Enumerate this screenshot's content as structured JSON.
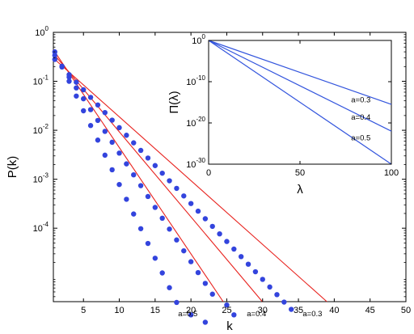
{
  "chart_data": [
    {
      "id": "main",
      "type": "scatter",
      "xlabel": "k",
      "ylabel": "P(k)",
      "xlim": [
        0.8,
        50
      ],
      "ylim_log10": [
        -5.5,
        0
      ],
      "y_scale": "log",
      "x_ticks": [
        5,
        10,
        15,
        20,
        25,
        30,
        35,
        40,
        45,
        50
      ],
      "y_ticks": [
        {
          "exp": 0,
          "label": "10",
          "sup": "0"
        },
        {
          "exp": -1,
          "label": "10",
          "sup": "-1"
        },
        {
          "exp": -2,
          "label": "10",
          "sup": "-2"
        },
        {
          "exp": -3,
          "label": "10",
          "sup": "-3"
        },
        {
          "exp": -4,
          "label": "10",
          "sup": "-4"
        }
      ],
      "grid": false,
      "marker_color": "#3344dd",
      "fit_color": "#e8221e",
      "series": [
        {
          "name": "a=0.5",
          "fit": [
            0.4,
            0.5
          ],
          "points": [
            [
              1,
              0.4
            ],
            [
              2,
              0.2
            ],
            [
              3,
              0.1
            ],
            [
              4,
              0.05
            ],
            [
              5,
              0.025
            ],
            [
              6,
              0.0125
            ],
            [
              7,
              0.0063
            ],
            [
              8,
              0.0031
            ],
            [
              9,
              0.00156
            ],
            [
              10,
              0.00078
            ],
            [
              11,
              0.00039
            ],
            [
              12,
              0.000195
            ],
            [
              13,
              9.77e-05
            ],
            [
              14,
              4.88e-05
            ],
            [
              15,
              2.44e-05
            ],
            [
              16,
              1.22e-05
            ],
            [
              17,
              6.1e-06
            ],
            [
              18,
              3.05e-06
            ],
            [
              20,
              1.7e-06
            ],
            [
              22,
              1.2e-06
            ]
          ]
        },
        {
          "name": "a=0.4",
          "fit": [
            0.34,
            0.4
          ],
          "points": [
            [
              1,
              0.34
            ],
            [
              2,
              0.204
            ],
            [
              3,
              0.122
            ],
            [
              4,
              0.0734
            ],
            [
              5,
              0.044
            ],
            [
              6,
              0.0264
            ],
            [
              7,
              0.0159
            ],
            [
              8,
              0.0095
            ],
            [
              9,
              0.0057
            ],
            [
              10,
              0.00342
            ],
            [
              11,
              0.00206
            ],
            [
              12,
              0.00123
            ],
            [
              13,
              0.00074
            ],
            [
              14,
              0.000444
            ],
            [
              15,
              0.000266
            ],
            [
              16,
              0.00016
            ],
            [
              17,
              9.59e-05
            ],
            [
              18,
              5.75e-05
            ],
            [
              19,
              3.45e-05
            ],
            [
              20,
              2.07e-05
            ],
            [
              21,
              1.24e-05
            ],
            [
              22,
              7.46e-06
            ],
            [
              23,
              4.5e-06
            ],
            [
              25,
              2.7e-06
            ],
            [
              26,
              1.7e-06
            ]
          ]
        },
        {
          "name": "a=0.3",
          "fit": [
            0.28,
            0.3
          ],
          "points": [
            [
              1,
              0.28
            ],
            [
              2,
              0.196
            ],
            [
              3,
              0.137
            ],
            [
              4,
              0.096
            ],
            [
              5,
              0.0672
            ],
            [
              6,
              0.047
            ],
            [
              7,
              0.0329
            ],
            [
              8,
              0.023
            ],
            [
              9,
              0.0161
            ],
            [
              10,
              0.0113
            ],
            [
              11,
              0.00791
            ],
            [
              12,
              0.00554
            ],
            [
              13,
              0.00388
            ],
            [
              14,
              0.00271
            ],
            [
              15,
              0.0019
            ],
            [
              16,
              0.00133
            ],
            [
              17,
              0.00093
            ],
            [
              18,
              0.000651
            ],
            [
              19,
              0.000456
            ],
            [
              20,
              0.000319
            ],
            [
              21,
              0.000223
            ],
            [
              22,
              0.000156
            ],
            [
              23,
              0.000109
            ],
            [
              24,
              7.66e-05
            ],
            [
              25,
              5.36e-05
            ],
            [
              26,
              3.75e-05
            ],
            [
              27,
              2.63e-05
            ],
            [
              28,
              1.84e-05
            ],
            [
              29,
              1.29e-05
            ],
            [
              30,
              9.02e-06
            ],
            [
              31,
              6.3e-06
            ],
            [
              32,
              4.4e-06
            ],
            [
              33,
              3.1e-06
            ],
            [
              34,
              2.2e-06
            ]
          ]
        }
      ],
      "annotations": [
        {
          "text": "a=0.5",
          "x": 18.2,
          "y": 1.8e-06
        },
        {
          "text": "a=0.4",
          "x": 27.8,
          "y": 1.8e-06
        },
        {
          "text": "a=0.3",
          "x": 35.6,
          "y": 1.8e-06
        }
      ]
    },
    {
      "id": "inset",
      "type": "line",
      "xlabel": "λ",
      "ylabel": "Π(λ)",
      "xlim": [
        0,
        100
      ],
      "ylim_log10": [
        -30,
        0
      ],
      "y_scale": "log",
      "x_ticks": [
        0,
        50,
        100
      ],
      "y_ticks": [
        {
          "exp": 0,
          "label": "10",
          "sup": "0"
        },
        {
          "exp": -10,
          "label": "10",
          "sup": "-10"
        },
        {
          "exp": -20,
          "label": "10",
          "sup": "-20"
        },
        {
          "exp": -30,
          "label": "10",
          "sup": "-30"
        }
      ],
      "line_color": "#3355dd",
      "series": [
        {
          "name": "a=0.3",
          "points": [
            [
              0,
              0
            ],
            [
              100,
              -15.5
            ]
          ]
        },
        {
          "name": "a=0.4",
          "points": [
            [
              0,
              0
            ],
            [
              100,
              -22
            ]
          ]
        },
        {
          "name": "a=0.5",
          "points": [
            [
              0,
              0
            ],
            [
              100,
              -30
            ]
          ]
        }
      ],
      "annotations": [
        {
          "text": "a=0.3",
          "x": 78,
          "y_log10": -14.4
        },
        {
          "text": "a=0.4",
          "x": 78,
          "y_log10": -18.6
        },
        {
          "text": "a=0.5",
          "x": 78,
          "y_log10": -23.6
        }
      ]
    }
  ]
}
